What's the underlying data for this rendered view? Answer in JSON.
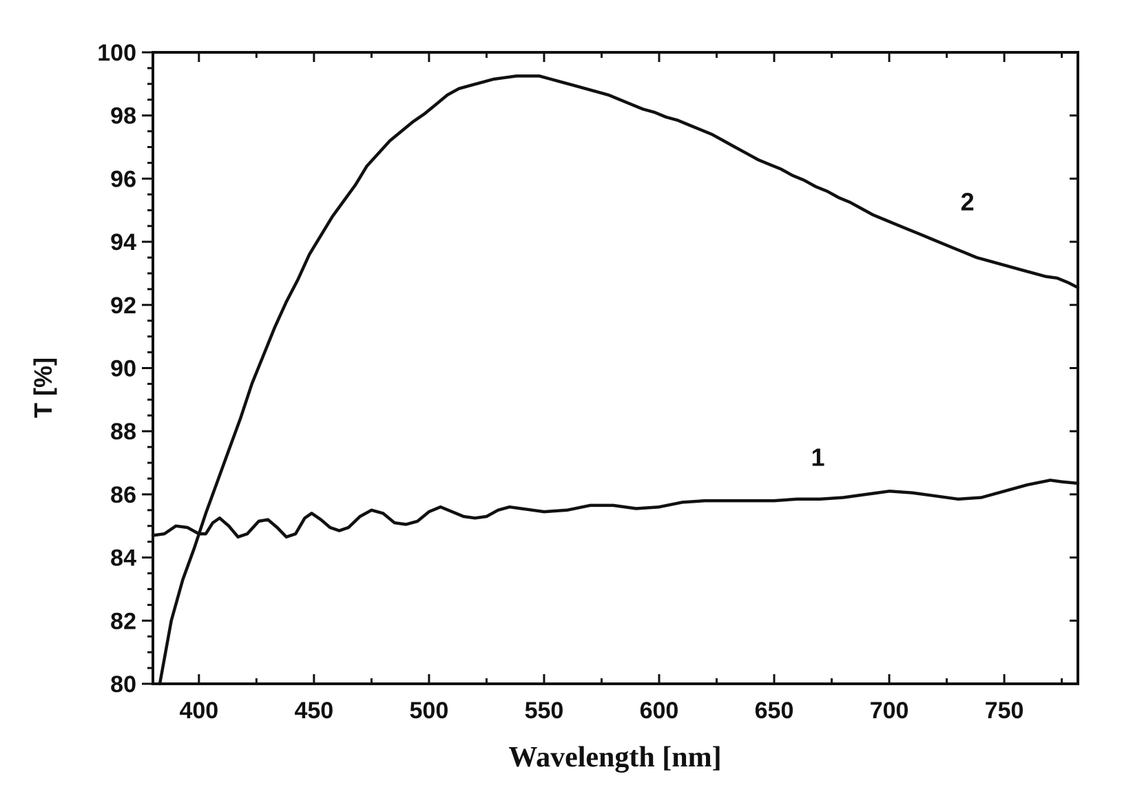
{
  "chart_data": {
    "type": "line",
    "title": "",
    "xlabel": "Wavelength [nm]",
    "ylabel": "T [%]",
    "xlim": [
      380,
      782
    ],
    "ylim": [
      80,
      100
    ],
    "x_ticks": [
      400,
      450,
      500,
      550,
      600,
      650,
      700,
      750
    ],
    "x_tick_labels": [
      "400",
      "450",
      "500",
      "550",
      "600",
      "650",
      "700",
      "750"
    ],
    "y_ticks": [
      80,
      82,
      84,
      86,
      88,
      90,
      92,
      94,
      96,
      98,
      100
    ],
    "y_tick_labels": [
      "80",
      "82",
      "84",
      "86",
      "88",
      "90",
      "92",
      "94",
      "96",
      "98",
      "100"
    ],
    "grid": false,
    "legend": "none",
    "series": [
      {
        "name": "1",
        "label_at": [
          669,
          86.9
        ],
        "points": [
          [
            380,
            84.7
          ],
          [
            385,
            84.75
          ],
          [
            390,
            85.0
          ],
          [
            395,
            84.95
          ],
          [
            400,
            84.75
          ],
          [
            403,
            84.75
          ],
          [
            406,
            85.1
          ],
          [
            409,
            85.25
          ],
          [
            413,
            85.0
          ],
          [
            417,
            84.65
          ],
          [
            421,
            84.75
          ],
          [
            426,
            85.15
          ],
          [
            430,
            85.2
          ],
          [
            434,
            84.95
          ],
          [
            438,
            84.65
          ],
          [
            442,
            84.75
          ],
          [
            446,
            85.25
          ],
          [
            449,
            85.4
          ],
          [
            453,
            85.2
          ],
          [
            457,
            84.95
          ],
          [
            461,
            84.85
          ],
          [
            465,
            84.95
          ],
          [
            470,
            85.3
          ],
          [
            475,
            85.5
          ],
          [
            480,
            85.4
          ],
          [
            485,
            85.1
          ],
          [
            490,
            85.05
          ],
          [
            495,
            85.15
          ],
          [
            500,
            85.45
          ],
          [
            505,
            85.6
          ],
          [
            510,
            85.45
          ],
          [
            515,
            85.3
          ],
          [
            520,
            85.25
          ],
          [
            525,
            85.3
          ],
          [
            530,
            85.5
          ],
          [
            535,
            85.6
          ],
          [
            540,
            85.55
          ],
          [
            545,
            85.5
          ],
          [
            550,
            85.45
          ],
          [
            560,
            85.5
          ],
          [
            570,
            85.65
          ],
          [
            580,
            85.65
          ],
          [
            590,
            85.55
          ],
          [
            600,
            85.6
          ],
          [
            610,
            85.75
          ],
          [
            620,
            85.8
          ],
          [
            630,
            85.8
          ],
          [
            640,
            85.8
          ],
          [
            650,
            85.8
          ],
          [
            660,
            85.85
          ],
          [
            670,
            85.85
          ],
          [
            680,
            85.9
          ],
          [
            690,
            86.0
          ],
          [
            700,
            86.1
          ],
          [
            710,
            86.05
          ],
          [
            720,
            85.95
          ],
          [
            730,
            85.85
          ],
          [
            740,
            85.9
          ],
          [
            750,
            86.1
          ],
          [
            760,
            86.3
          ],
          [
            770,
            86.45
          ],
          [
            775,
            86.4
          ],
          [
            782,
            86.35
          ]
        ]
      },
      {
        "name": "2",
        "label_at": [
          734,
          95.0
        ],
        "points": [
          [
            383,
            80.0
          ],
          [
            388,
            82.0
          ],
          [
            393,
            83.3
          ],
          [
            398,
            84.3
          ],
          [
            403,
            85.4
          ],
          [
            408,
            86.4
          ],
          [
            413,
            87.4
          ],
          [
            418,
            88.4
          ],
          [
            423,
            89.5
          ],
          [
            428,
            90.4
          ],
          [
            433,
            91.3
          ],
          [
            438,
            92.1
          ],
          [
            443,
            92.8
          ],
          [
            448,
            93.6
          ],
          [
            453,
            94.2
          ],
          [
            458,
            94.8
          ],
          [
            463,
            95.3
          ],
          [
            468,
            95.8
          ],
          [
            473,
            96.4
          ],
          [
            478,
            96.8
          ],
          [
            483,
            97.2
          ],
          [
            488,
            97.5
          ],
          [
            493,
            97.8
          ],
          [
            498,
            98.05
          ],
          [
            503,
            98.35
          ],
          [
            508,
            98.65
          ],
          [
            513,
            98.85
          ],
          [
            518,
            98.95
          ],
          [
            523,
            99.05
          ],
          [
            528,
            99.15
          ],
          [
            533,
            99.2
          ],
          [
            538,
            99.25
          ],
          [
            543,
            99.25
          ],
          [
            548,
            99.25
          ],
          [
            553,
            99.15
          ],
          [
            558,
            99.05
          ],
          [
            563,
            98.95
          ],
          [
            568,
            98.85
          ],
          [
            573,
            98.75
          ],
          [
            578,
            98.65
          ],
          [
            583,
            98.5
          ],
          [
            588,
            98.35
          ],
          [
            593,
            98.2
          ],
          [
            598,
            98.1
          ],
          [
            603,
            97.95
          ],
          [
            608,
            97.85
          ],
          [
            613,
            97.7
          ],
          [
            618,
            97.55
          ],
          [
            623,
            97.4
          ],
          [
            628,
            97.2
          ],
          [
            633,
            97.0
          ],
          [
            638,
            96.8
          ],
          [
            643,
            96.6
          ],
          [
            648,
            96.45
          ],
          [
            653,
            96.3
          ],
          [
            658,
            96.1
          ],
          [
            663,
            95.95
          ],
          [
            668,
            95.75
          ],
          [
            673,
            95.6
          ],
          [
            678,
            95.4
          ],
          [
            683,
            95.25
          ],
          [
            688,
            95.05
          ],
          [
            693,
            94.85
          ],
          [
            698,
            94.7
          ],
          [
            703,
            94.55
          ],
          [
            708,
            94.4
          ],
          [
            713,
            94.25
          ],
          [
            718,
            94.1
          ],
          [
            723,
            93.95
          ],
          [
            728,
            93.8
          ],
          [
            733,
            93.65
          ],
          [
            738,
            93.5
          ],
          [
            743,
            93.4
          ],
          [
            748,
            93.3
          ],
          [
            753,
            93.2
          ],
          [
            758,
            93.1
          ],
          [
            763,
            93.0
          ],
          [
            768,
            92.9
          ],
          [
            773,
            92.85
          ],
          [
            778,
            92.7
          ],
          [
            782,
            92.55
          ]
        ]
      }
    ]
  }
}
